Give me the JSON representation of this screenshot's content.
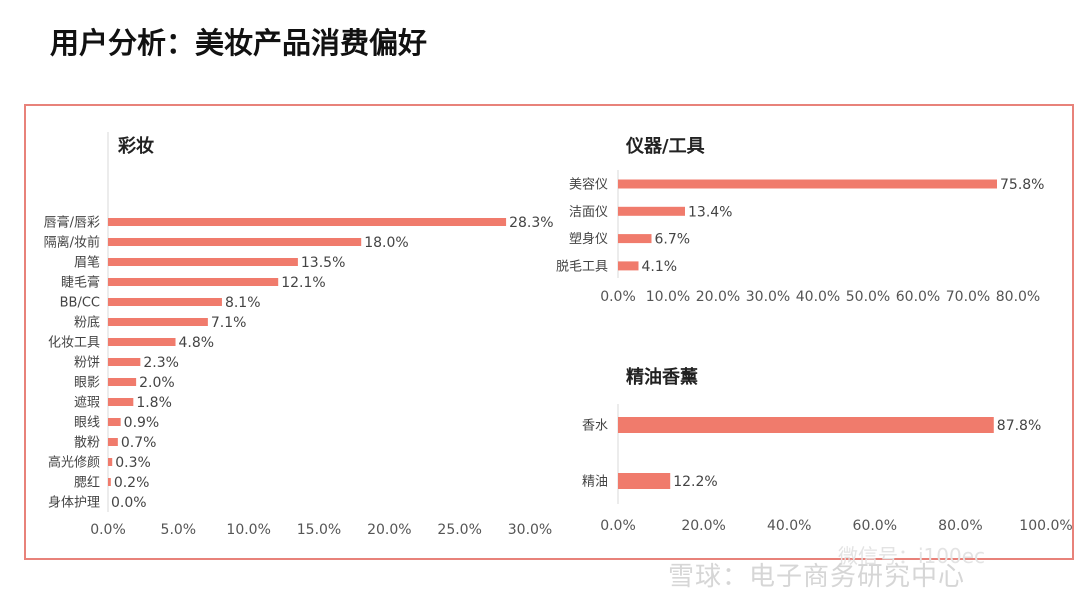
{
  "page": {
    "title": "用户分析：美妆产品消费偏好"
  },
  "watermark": {
    "text": "雪球：电子商务研究中心",
    "text2": "微信号：i100ec"
  },
  "chart_data": [
    {
      "type": "bar",
      "orientation": "horizontal",
      "title": "彩妆",
      "categories": [
        "唇膏/唇彩",
        "隔离/妆前",
        "眉笔",
        "睫毛膏",
        "BB/CC",
        "粉底",
        "化妆工具",
        "粉饼",
        "眼影",
        "遮瑕",
        "眼线",
        "散粉",
        "高光修颜",
        "腮红",
        "身体护理"
      ],
      "values": [
        28.3,
        18.0,
        13.5,
        12.1,
        8.1,
        7.1,
        4.8,
        2.3,
        2.0,
        1.8,
        0.9,
        0.7,
        0.3,
        0.2,
        0.0
      ],
      "labels": [
        "28.3%",
        "18.0%",
        "13.5%",
        "12.1%",
        "8.1%",
        "7.1%",
        "4.8%",
        "2.3%",
        "2.0%",
        "1.8%",
        "0.9%",
        "0.7%",
        "0.3%",
        "0.2%",
        "0.0%"
      ],
      "xlim": [
        0,
        30
      ],
      "ticks": [
        "0.0%",
        "5.0%",
        "10.0%",
        "15.0%",
        "20.0%",
        "25.0%",
        "30.0%"
      ],
      "color": "#f07b6c"
    },
    {
      "type": "bar",
      "orientation": "horizontal",
      "title": "仪器/工具",
      "categories": [
        "美容仪",
        "洁面仪",
        "塑身仪",
        "脱毛工具"
      ],
      "values": [
        75.8,
        13.4,
        6.7,
        4.1
      ],
      "labels": [
        "75.8%",
        "13.4%",
        "6.7%",
        "4.1%"
      ],
      "xlim": [
        0,
        80
      ],
      "ticks": [
        "0.0%",
        "10.0%",
        "20.0%",
        "30.0%",
        "40.0%",
        "50.0%",
        "60.0%",
        "70.0%",
        "80.0%"
      ],
      "color": "#f07b6c"
    },
    {
      "type": "bar",
      "orientation": "horizontal",
      "title": "精油香薰",
      "categories": [
        "香水",
        "精油"
      ],
      "values": [
        87.8,
        12.2
      ],
      "labels": [
        "87.8%",
        "12.2%"
      ],
      "xlim": [
        0,
        100
      ],
      "ticks": [
        "0.0%",
        "20.0%",
        "40.0%",
        "60.0%",
        "80.0%",
        "100.0%"
      ],
      "color": "#f07b6c"
    }
  ]
}
